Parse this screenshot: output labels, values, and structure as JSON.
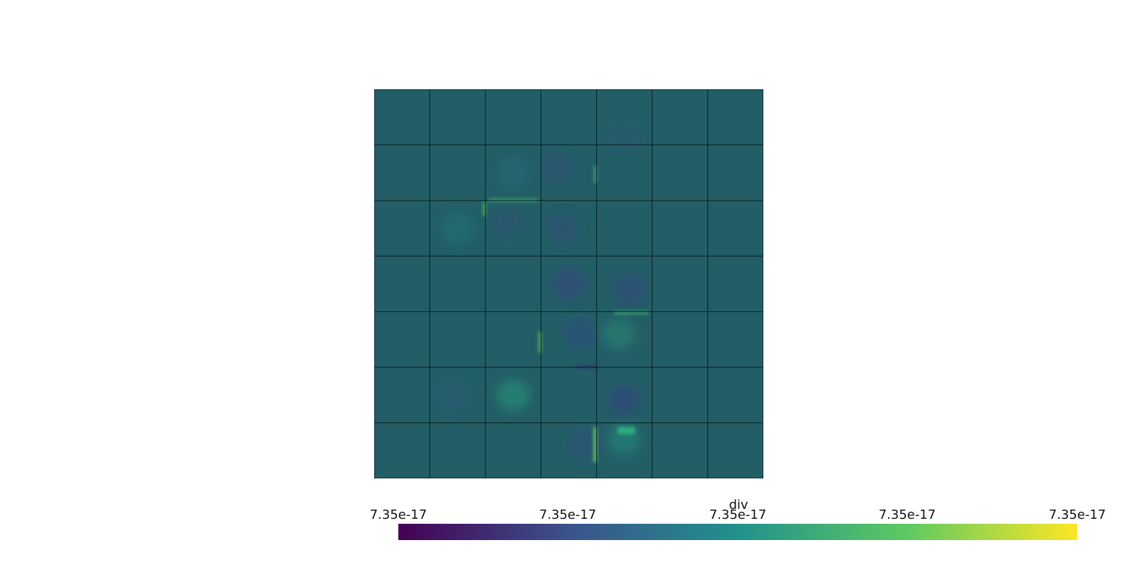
{
  "render": {
    "background": "#ffffff",
    "mesh": {
      "rows": 7,
      "cols": 7,
      "field_color": "#235e66",
      "edge_color": "#0b1e24"
    }
  },
  "colorbar": {
    "title": "div",
    "colormap": "viridis",
    "colors": [
      "#440154",
      "#3b528b",
      "#21918c",
      "#5ec962",
      "#fde725"
    ],
    "tick_labels": [
      "7.35e-17",
      "7.35e-17",
      "7.35e-17",
      "7.35e-17",
      "7.35e-17"
    ]
  }
}
